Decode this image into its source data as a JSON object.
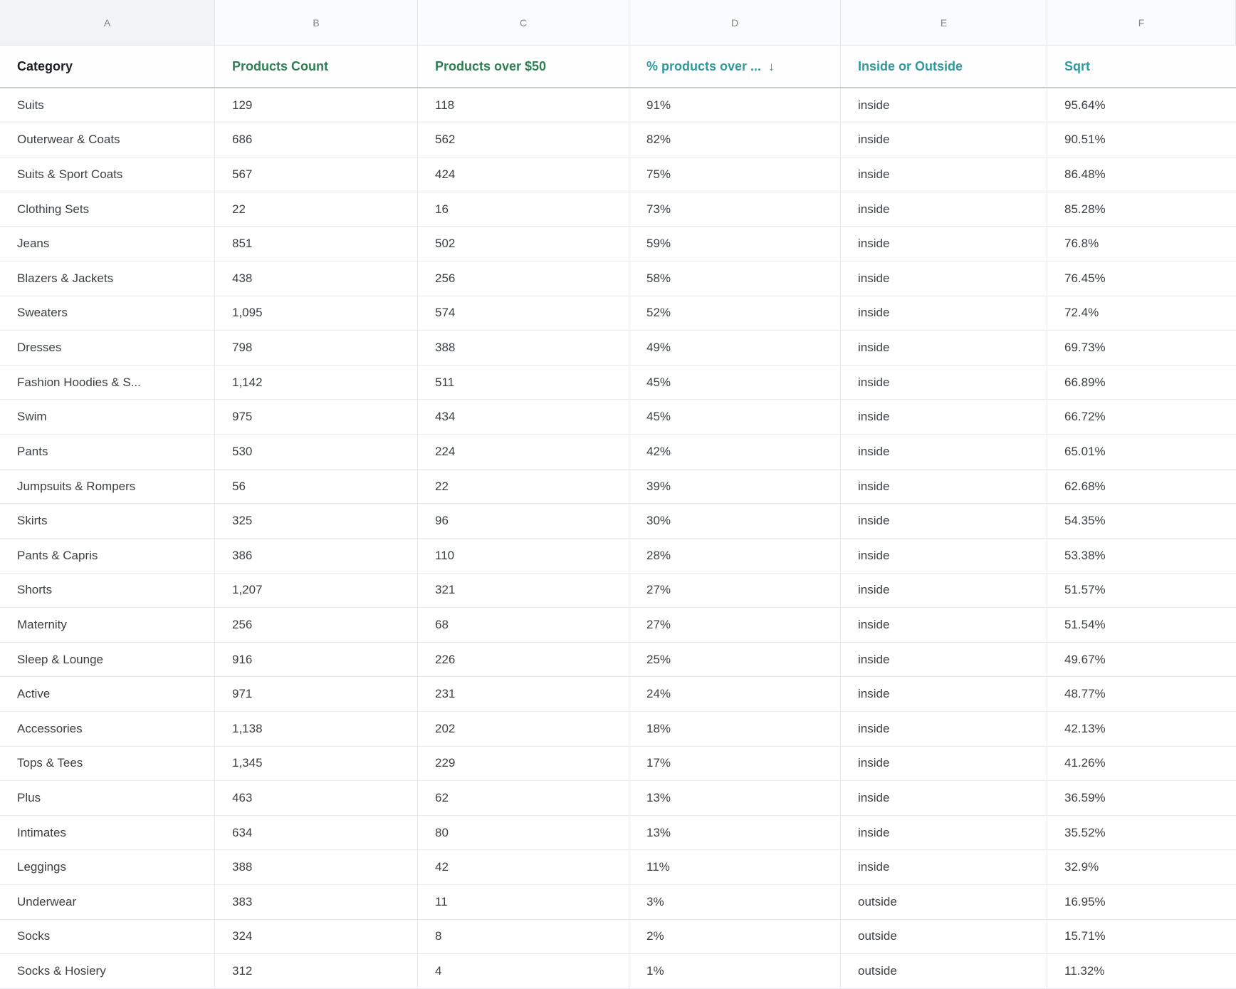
{
  "sheet": {
    "column_letters": [
      "A",
      "B",
      "C",
      "D",
      "E",
      "F"
    ],
    "header": {
      "category": "Category",
      "products_count": "Products Count",
      "products_over_50": "Products over $50",
      "pct_products_over": "% products over ...",
      "sort_arrow": "↓",
      "inside_or_outside": "Inside or Outside",
      "sqrt": "Sqrt"
    },
    "colors": {
      "header_green": "#2e8053",
      "header_teal": "#2f999e",
      "header_category_text": "#1b1f24",
      "data_text": "#3c4043",
      "grid_line": "#e8eaed",
      "header_bottom_border": "#c3cbd3",
      "letter_row_bg": "#fafbfc",
      "letter_col_a_bg": "#f1f3f5"
    },
    "rows": [
      {
        "category": "Suits",
        "products_count": "129",
        "products_over_50": "118",
        "pct_products_over": "91%",
        "inside_or_outside": "inside",
        "sqrt": "95.64%"
      },
      {
        "category": "Outerwear & Coats",
        "products_count": "686",
        "products_over_50": "562",
        "pct_products_over": "82%",
        "inside_or_outside": "inside",
        "sqrt": "90.51%"
      },
      {
        "category": "Suits & Sport Coats",
        "products_count": "567",
        "products_over_50": "424",
        "pct_products_over": "75%",
        "inside_or_outside": "inside",
        "sqrt": "86.48%"
      },
      {
        "category": "Clothing Sets",
        "products_count": "22",
        "products_over_50": "16",
        "pct_products_over": "73%",
        "inside_or_outside": "inside",
        "sqrt": "85.28%"
      },
      {
        "category": "Jeans",
        "products_count": "851",
        "products_over_50": "502",
        "pct_products_over": "59%",
        "inside_or_outside": "inside",
        "sqrt": "76.8%"
      },
      {
        "category": "Blazers & Jackets",
        "products_count": "438",
        "products_over_50": "256",
        "pct_products_over": "58%",
        "inside_or_outside": "inside",
        "sqrt": "76.45%"
      },
      {
        "category": "Sweaters",
        "products_count": "1,095",
        "products_over_50": "574",
        "pct_products_over": "52%",
        "inside_or_outside": "inside",
        "sqrt": "72.4%"
      },
      {
        "category": "Dresses",
        "products_count": "798",
        "products_over_50": "388",
        "pct_products_over": "49%",
        "inside_or_outside": "inside",
        "sqrt": "69.73%"
      },
      {
        "category": "Fashion Hoodies & S...",
        "products_count": "1,142",
        "products_over_50": "511",
        "pct_products_over": "45%",
        "inside_or_outside": "inside",
        "sqrt": "66.89%"
      },
      {
        "category": "Swim",
        "products_count": "975",
        "products_over_50": "434",
        "pct_products_over": "45%",
        "inside_or_outside": "inside",
        "sqrt": "66.72%"
      },
      {
        "category": "Pants",
        "products_count": "530",
        "products_over_50": "224",
        "pct_products_over": "42%",
        "inside_or_outside": "inside",
        "sqrt": "65.01%"
      },
      {
        "category": "Jumpsuits & Rompers",
        "products_count": "56",
        "products_over_50": "22",
        "pct_products_over": "39%",
        "inside_or_outside": "inside",
        "sqrt": "62.68%"
      },
      {
        "category": "Skirts",
        "products_count": "325",
        "products_over_50": "96",
        "pct_products_over": "30%",
        "inside_or_outside": "inside",
        "sqrt": "54.35%"
      },
      {
        "category": "Pants & Capris",
        "products_count": "386",
        "products_over_50": "110",
        "pct_products_over": "28%",
        "inside_or_outside": "inside",
        "sqrt": "53.38%"
      },
      {
        "category": "Shorts",
        "products_count": "1,207",
        "products_over_50": "321",
        "pct_products_over": "27%",
        "inside_or_outside": "inside",
        "sqrt": "51.57%"
      },
      {
        "category": "Maternity",
        "products_count": "256",
        "products_over_50": "68",
        "pct_products_over": "27%",
        "inside_or_outside": "inside",
        "sqrt": "51.54%"
      },
      {
        "category": "Sleep & Lounge",
        "products_count": "916",
        "products_over_50": "226",
        "pct_products_over": "25%",
        "inside_or_outside": "inside",
        "sqrt": "49.67%"
      },
      {
        "category": "Active",
        "products_count": "971",
        "products_over_50": "231",
        "pct_products_over": "24%",
        "inside_or_outside": "inside",
        "sqrt": "48.77%"
      },
      {
        "category": "Accessories",
        "products_count": "1,138",
        "products_over_50": "202",
        "pct_products_over": "18%",
        "inside_or_outside": "inside",
        "sqrt": "42.13%"
      },
      {
        "category": "Tops & Tees",
        "products_count": "1,345",
        "products_over_50": "229",
        "pct_products_over": "17%",
        "inside_or_outside": "inside",
        "sqrt": "41.26%"
      },
      {
        "category": "Plus",
        "products_count": "463",
        "products_over_50": "62",
        "pct_products_over": "13%",
        "inside_or_outside": "inside",
        "sqrt": "36.59%"
      },
      {
        "category": "Intimates",
        "products_count": "634",
        "products_over_50": "80",
        "pct_products_over": "13%",
        "inside_or_outside": "inside",
        "sqrt": "35.52%"
      },
      {
        "category": "Leggings",
        "products_count": "388",
        "products_over_50": "42",
        "pct_products_over": "11%",
        "inside_or_outside": "inside",
        "sqrt": "32.9%"
      },
      {
        "category": "Underwear",
        "products_count": "383",
        "products_over_50": "11",
        "pct_products_over": "3%",
        "inside_or_outside": "outside",
        "sqrt": "16.95%"
      },
      {
        "category": "Socks",
        "products_count": "324",
        "products_over_50": "8",
        "pct_products_over": "2%",
        "inside_or_outside": "outside",
        "sqrt": "15.71%"
      },
      {
        "category": "Socks & Hosiery",
        "products_count": "312",
        "products_over_50": "4",
        "pct_products_over": "1%",
        "inside_or_outside": "outside",
        "sqrt": "11.32%"
      }
    ]
  }
}
